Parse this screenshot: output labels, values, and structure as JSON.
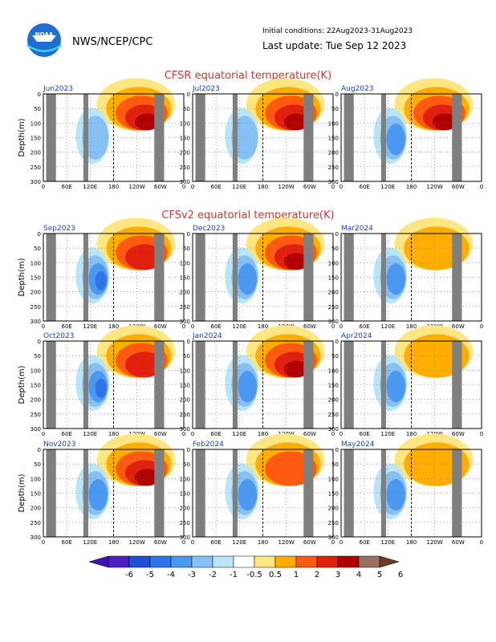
{
  "header": {
    "org": "NWS/NCEP/CPC",
    "logo_text": "NOAA",
    "initial_conditions": "Initial conditions: 22Aug2023-31Aug2023",
    "last_update": "Last update: Tue Sep 12 2023"
  },
  "sections": {
    "cfsr_title": "CFSR equatorial temperature(K)",
    "cfsv2_title": "CFSv2 equatorial temperature(K)"
  },
  "colors": {
    "title_red": "#e03030",
    "panel_title_blue": "#1a3fd0",
    "land_gray": "#7f7f7f"
  },
  "axes": {
    "ylabel": "Depth(m)",
    "depth_ticks": [
      "0",
      "50",
      "100",
      "150",
      "200",
      "250",
      "300"
    ],
    "lon_ticks": [
      "0",
      "60E",
      "120E",
      "180",
      "120W",
      "60W",
      "0"
    ]
  },
  "colorbar": {
    "labels": [
      "-6",
      "-5",
      "-4",
      "-3",
      "-2",
      "-1",
      "-0.5",
      "0.5",
      "1",
      "2",
      "3",
      "4",
      "5",
      "6"
    ],
    "colors": [
      "#4b1fc0",
      "#1f4fd8",
      "#2f73e8",
      "#4b98f0",
      "#86c0f5",
      "#b8e6f8",
      "#ffffff",
      "#ffe680",
      "#ffae00",
      "#ff5a10",
      "#e0200c",
      "#b00000",
      "#9a7060"
    ]
  },
  "chart_data": {
    "type": "heatmap",
    "variable": "equatorial temperature anomaly (K)",
    "depth_range": [
      0,
      300
    ],
    "lon_range": [
      "0",
      "0"
    ],
    "panels": [
      {
        "label": "Jun2023",
        "group": "CFSR",
        "warm_peak": 4,
        "cold_peak": -1
      },
      {
        "label": "Jul2023",
        "group": "CFSR",
        "warm_peak": 4,
        "cold_peak": -1
      },
      {
        "label": "Aug2023",
        "group": "CFSR",
        "warm_peak": 4,
        "cold_peak": -2
      },
      {
        "label": "Sep2023",
        "group": "CFSv2",
        "warm_peak": 3,
        "cold_peak": -3
      },
      {
        "label": "Dec2023",
        "group": "CFSv2",
        "warm_peak": 4,
        "cold_peak": -2
      },
      {
        "label": "Mar2024",
        "group": "CFSv2",
        "warm_peak": 1,
        "cold_peak": -2
      },
      {
        "label": "Oct2023",
        "group": "CFSv2",
        "warm_peak": 3,
        "cold_peak": -3
      },
      {
        "label": "Jan2024",
        "group": "CFSv2",
        "warm_peak": 4,
        "cold_peak": -2
      },
      {
        "label": "Apr2024",
        "group": "CFSv2",
        "warm_peak": 1,
        "cold_peak": -2
      },
      {
        "label": "Nov2023",
        "group": "CFSv2",
        "warm_peak": 4,
        "cold_peak": -2
      },
      {
        "label": "Feb2024",
        "group": "CFSv2",
        "warm_peak": 2,
        "cold_peak": -2
      },
      {
        "label": "May2024",
        "group": "CFSv2",
        "warm_peak": 1,
        "cold_peak": -2
      }
    ]
  }
}
